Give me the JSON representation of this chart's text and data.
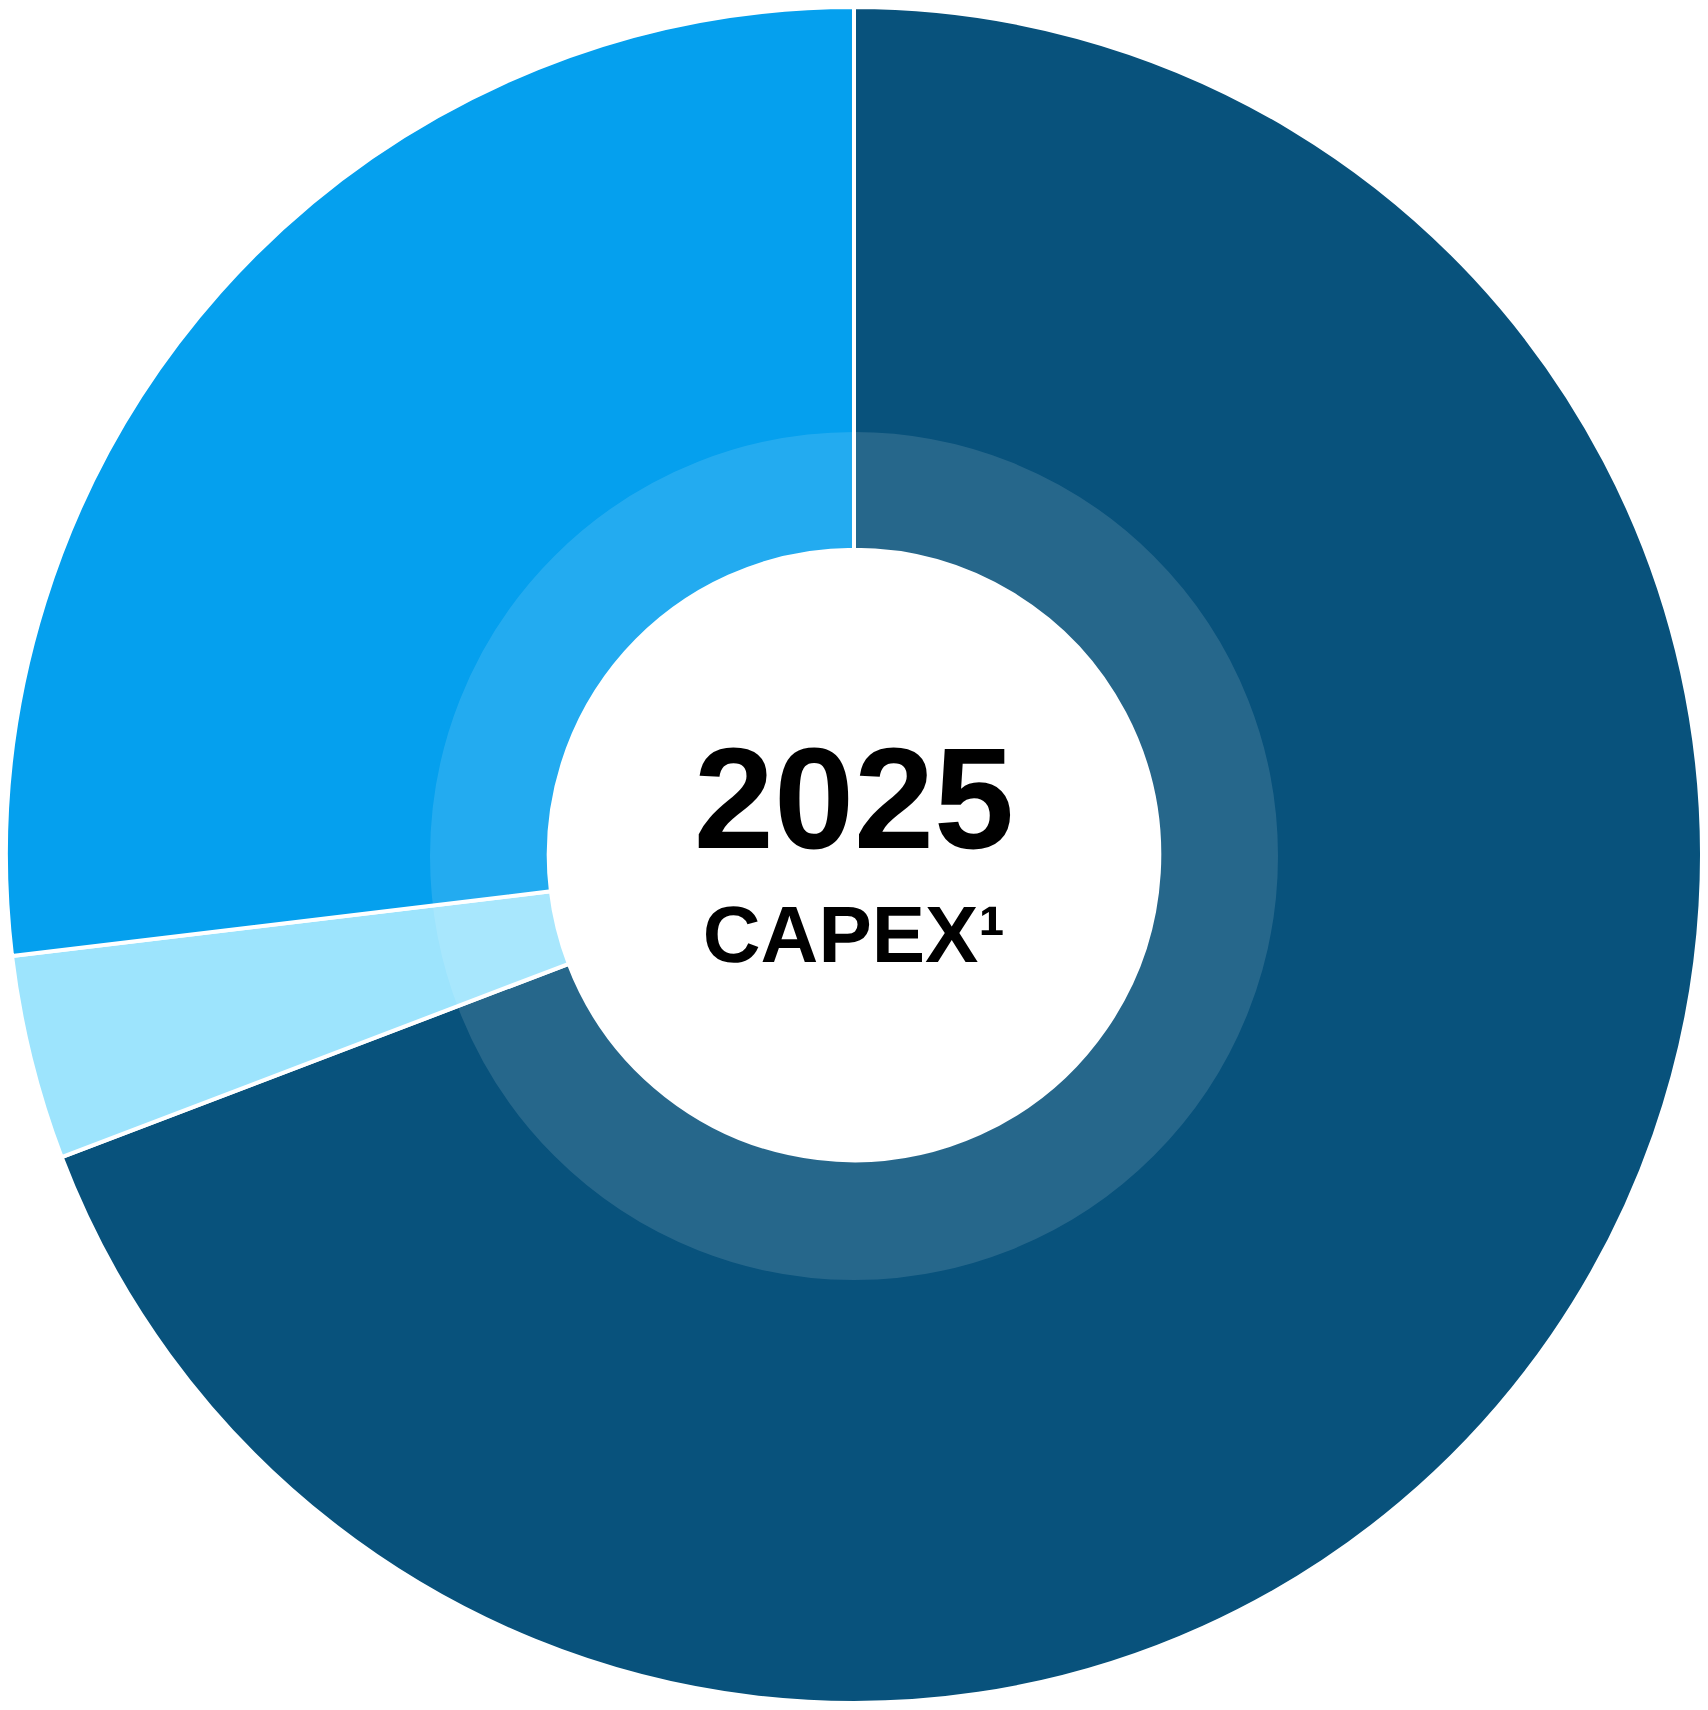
{
  "chart_data": {
    "type": "donut",
    "title": "2025",
    "subtitle": "CAPEX¹",
    "categories": [
      null,
      null,
      null
    ],
    "values": [
      69.2,
      3.9,
      26.9
    ],
    "colors": [
      "#08527c",
      "#9de4fd",
      "#05a0ee"
    ],
    "legend": false
  }
}
